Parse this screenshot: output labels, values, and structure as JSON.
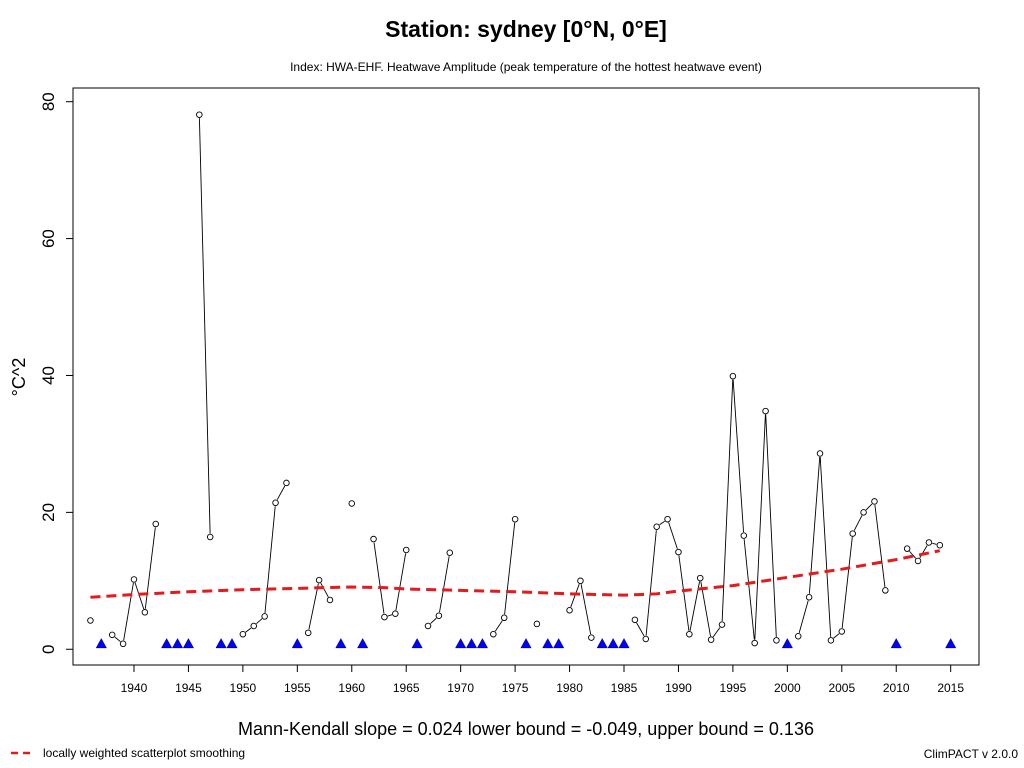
{
  "chart_data": {
    "type": "line",
    "title": "Station: sydney [0°N, 0°E]",
    "subtitle": "Index: HWA-EHF. Heatwave Amplitude (peak temperature of the hottest heatwave event)",
    "xlabel": "",
    "ylabel": "°C^2",
    "xlim": [
      1934.4,
      2017.6
    ],
    "ylim": [
      -2.3,
      82.0
    ],
    "x_ticks": [
      1940,
      1945,
      1950,
      1955,
      1960,
      1965,
      1970,
      1975,
      1980,
      1985,
      1990,
      1995,
      2000,
      2005,
      2010,
      2015
    ],
    "y_ticks": [
      0,
      20,
      40,
      60,
      80
    ],
    "grid": false,
    "legend": "bottom-left",
    "series": [
      {
        "name": "",
        "kind": "observations",
        "points": [
          [
            1936,
            4.2
          ],
          [
            1938,
            2.1
          ],
          [
            1939,
            0.8
          ],
          [
            1940,
            10.2
          ],
          [
            1941,
            5.4
          ],
          [
            1942,
            18.3
          ],
          [
            1946,
            78.1
          ],
          [
            1947,
            16.4
          ],
          [
            1950,
            2.2
          ],
          [
            1951,
            3.4
          ],
          [
            1952,
            4.8
          ],
          [
            1953,
            21.4
          ],
          [
            1954,
            24.3
          ],
          [
            1956,
            2.4
          ],
          [
            1957,
            10.1
          ],
          [
            1958,
            7.2
          ],
          [
            1960,
            21.3
          ],
          [
            1962,
            16.1
          ],
          [
            1963,
            4.7
          ],
          [
            1964,
            5.2
          ],
          [
            1965,
            14.5
          ],
          [
            1967,
            3.4
          ],
          [
            1968,
            4.9
          ],
          [
            1969,
            14.1
          ],
          [
            1973,
            2.2
          ],
          [
            1974,
            4.6
          ],
          [
            1975,
            19.0
          ],
          [
            1977,
            3.7
          ],
          [
            1980,
            5.7
          ],
          [
            1981,
            10.0
          ],
          [
            1982,
            1.7
          ],
          [
            1986,
            4.3
          ],
          [
            1987,
            1.5
          ],
          [
            1988,
            17.9
          ],
          [
            1989,
            19.0
          ],
          [
            1990,
            14.2
          ],
          [
            1991,
            2.2
          ],
          [
            1992,
            10.4
          ],
          [
            1993,
            1.4
          ],
          [
            1994,
            3.6
          ],
          [
            1995,
            39.9
          ],
          [
            1996,
            16.6
          ],
          [
            1997,
            0.9
          ],
          [
            1998,
            34.8
          ],
          [
            1999,
            1.3
          ],
          [
            2001,
            1.9
          ],
          [
            2002,
            7.6
          ],
          [
            2003,
            28.6
          ],
          [
            2004,
            1.3
          ],
          [
            2005,
            2.6
          ],
          [
            2006,
            16.9
          ],
          [
            2007,
            20.0
          ],
          [
            2008,
            21.6
          ],
          [
            2009,
            8.6
          ],
          [
            2011,
            14.7
          ],
          [
            2012,
            12.9
          ],
          [
            2013,
            15.6
          ],
          [
            2014,
            15.2
          ]
        ]
      },
      {
        "name": "",
        "kind": "missing",
        "points": [
          [
            1937,
            0.8
          ],
          [
            1943,
            0.8
          ],
          [
            1944,
            0.8
          ],
          [
            1945,
            0.8
          ],
          [
            1948,
            0.8
          ],
          [
            1949,
            0.8
          ],
          [
            1955,
            0.8
          ],
          [
            1959,
            0.8
          ],
          [
            1961,
            0.8
          ],
          [
            1966,
            0.8
          ],
          [
            1970,
            0.8
          ],
          [
            1971,
            0.8
          ],
          [
            1972,
            0.8
          ],
          [
            1976,
            0.8
          ],
          [
            1978,
            0.8
          ],
          [
            1979,
            0.8
          ],
          [
            1983,
            0.8
          ],
          [
            1984,
            0.8
          ],
          [
            1985,
            0.8
          ],
          [
            2000,
            0.8
          ],
          [
            2010,
            0.8
          ],
          [
            2015,
            0.8
          ]
        ]
      },
      {
        "name": "locally weighted scatterplot smoothing",
        "kind": "smooth",
        "color": "#e41a1c",
        "points": [
          [
            1936,
            7.6
          ],
          [
            1940,
            8.0
          ],
          [
            1945,
            8.4
          ],
          [
            1950,
            8.7
          ],
          [
            1955,
            8.9
          ],
          [
            1960,
            9.1
          ],
          [
            1963,
            9.0
          ],
          [
            1965,
            8.8
          ],
          [
            1970,
            8.6
          ],
          [
            1975,
            8.4
          ],
          [
            1980,
            8.1
          ],
          [
            1985,
            7.9
          ],
          [
            1988,
            8.1
          ],
          [
            1990,
            8.5
          ],
          [
            1995,
            9.3
          ],
          [
            2000,
            10.5
          ],
          [
            2005,
            11.7
          ],
          [
            2010,
            13.1
          ],
          [
            2014,
            14.4
          ]
        ]
      }
    ],
    "stats_text": "Mann-Kendall slope = 0.024   lower bound = -0.049,   upper bound = 0.136",
    "credit": "ClimPACT v 2.0.0"
  },
  "colors": {
    "smooth": "#e41a1c",
    "missing": "#0000ff",
    "line": "#000000"
  }
}
